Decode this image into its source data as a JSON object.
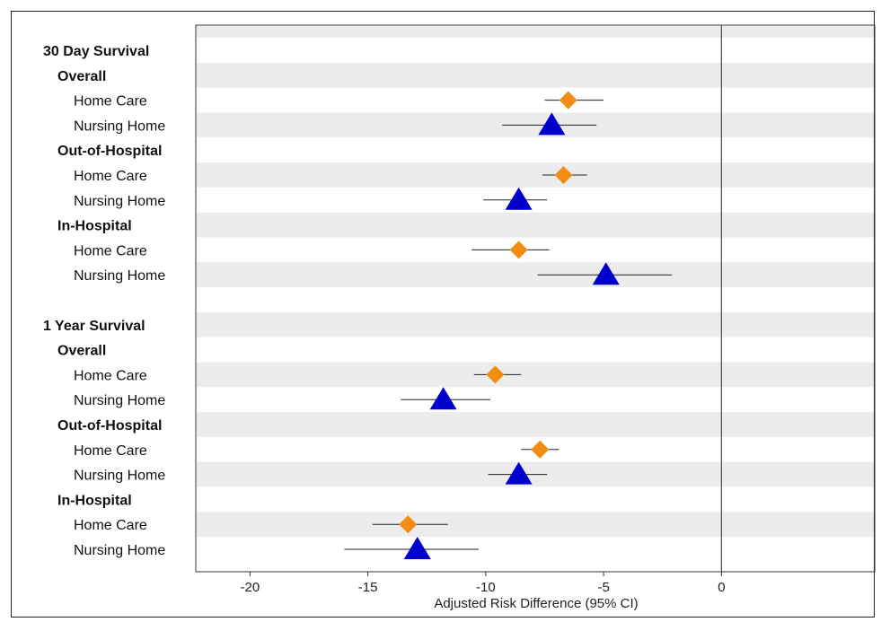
{
  "chart_data": {
    "type": "forest",
    "xlabel": "Adjusted Risk Difference (95% CI)",
    "xlim": [
      -22.3,
      6.5
    ],
    "xticks": [
      -20,
      -15,
      -10,
      -5,
      0
    ],
    "reference_line": 0,
    "series": [
      {
        "name": "Home Care",
        "marker": "diamond",
        "color": "#f28c12"
      },
      {
        "name": "Nursing Home",
        "marker": "triangle",
        "color": "#0000cc"
      }
    ],
    "rows": [
      {
        "label": "30 Day Survival",
        "level": 0,
        "bold": true
      },
      {
        "label": "Overall",
        "level": 1,
        "bold": true
      },
      {
        "label": "Home Care",
        "level": 2,
        "series": "Home Care",
        "est": -6.5,
        "lo": -7.5,
        "hi": -5.0
      },
      {
        "label": "Nursing Home",
        "level": 2,
        "series": "Nursing Home",
        "est": -7.2,
        "lo": -9.3,
        "hi": -5.3
      },
      {
        "label": "Out-of-Hospital",
        "level": 1,
        "bold": true
      },
      {
        "label": "Home Care",
        "level": 2,
        "series": "Home Care",
        "est": -6.7,
        "lo": -7.6,
        "hi": -5.7
      },
      {
        "label": "Nursing Home",
        "level": 2,
        "series": "Nursing Home",
        "est": -8.6,
        "lo": -10.1,
        "hi": -7.4
      },
      {
        "label": "In-Hospital",
        "level": 1,
        "bold": true
      },
      {
        "label": "Home Care",
        "level": 2,
        "series": "Home Care",
        "est": -8.6,
        "lo": -10.6,
        "hi": -7.3
      },
      {
        "label": "Nursing Home",
        "level": 2,
        "series": "Nursing Home",
        "est": -4.9,
        "lo": -7.8,
        "hi": -2.1
      },
      {
        "label": "",
        "level": 0
      },
      {
        "label": "1 Year Survival",
        "level": 0,
        "bold": true
      },
      {
        "label": "Overall",
        "level": 1,
        "bold": true
      },
      {
        "label": "Home Care",
        "level": 2,
        "series": "Home Care",
        "est": -9.6,
        "lo": -10.5,
        "hi": -8.5
      },
      {
        "label": "Nursing Home",
        "level": 2,
        "series": "Nursing Home",
        "est": -11.8,
        "lo": -13.6,
        "hi": -9.8
      },
      {
        "label": "Out-of-Hospital",
        "level": 1,
        "bold": true
      },
      {
        "label": "Home Care",
        "level": 2,
        "series": "Home Care",
        "est": -7.7,
        "lo": -8.5,
        "hi": -6.9
      },
      {
        "label": "Nursing Home",
        "level": 2,
        "series": "Nursing Home",
        "est": -8.6,
        "lo": -9.9,
        "hi": -7.4
      },
      {
        "label": "In-Hospital",
        "level": 1,
        "bold": true
      },
      {
        "label": "Home Care",
        "level": 2,
        "series": "Home Care",
        "est": -13.3,
        "lo": -14.8,
        "hi": -11.6
      },
      {
        "label": "Nursing Home",
        "level": 2,
        "series": "Nursing Home",
        "est": -12.9,
        "lo": -16.0,
        "hi": -10.3
      }
    ]
  }
}
